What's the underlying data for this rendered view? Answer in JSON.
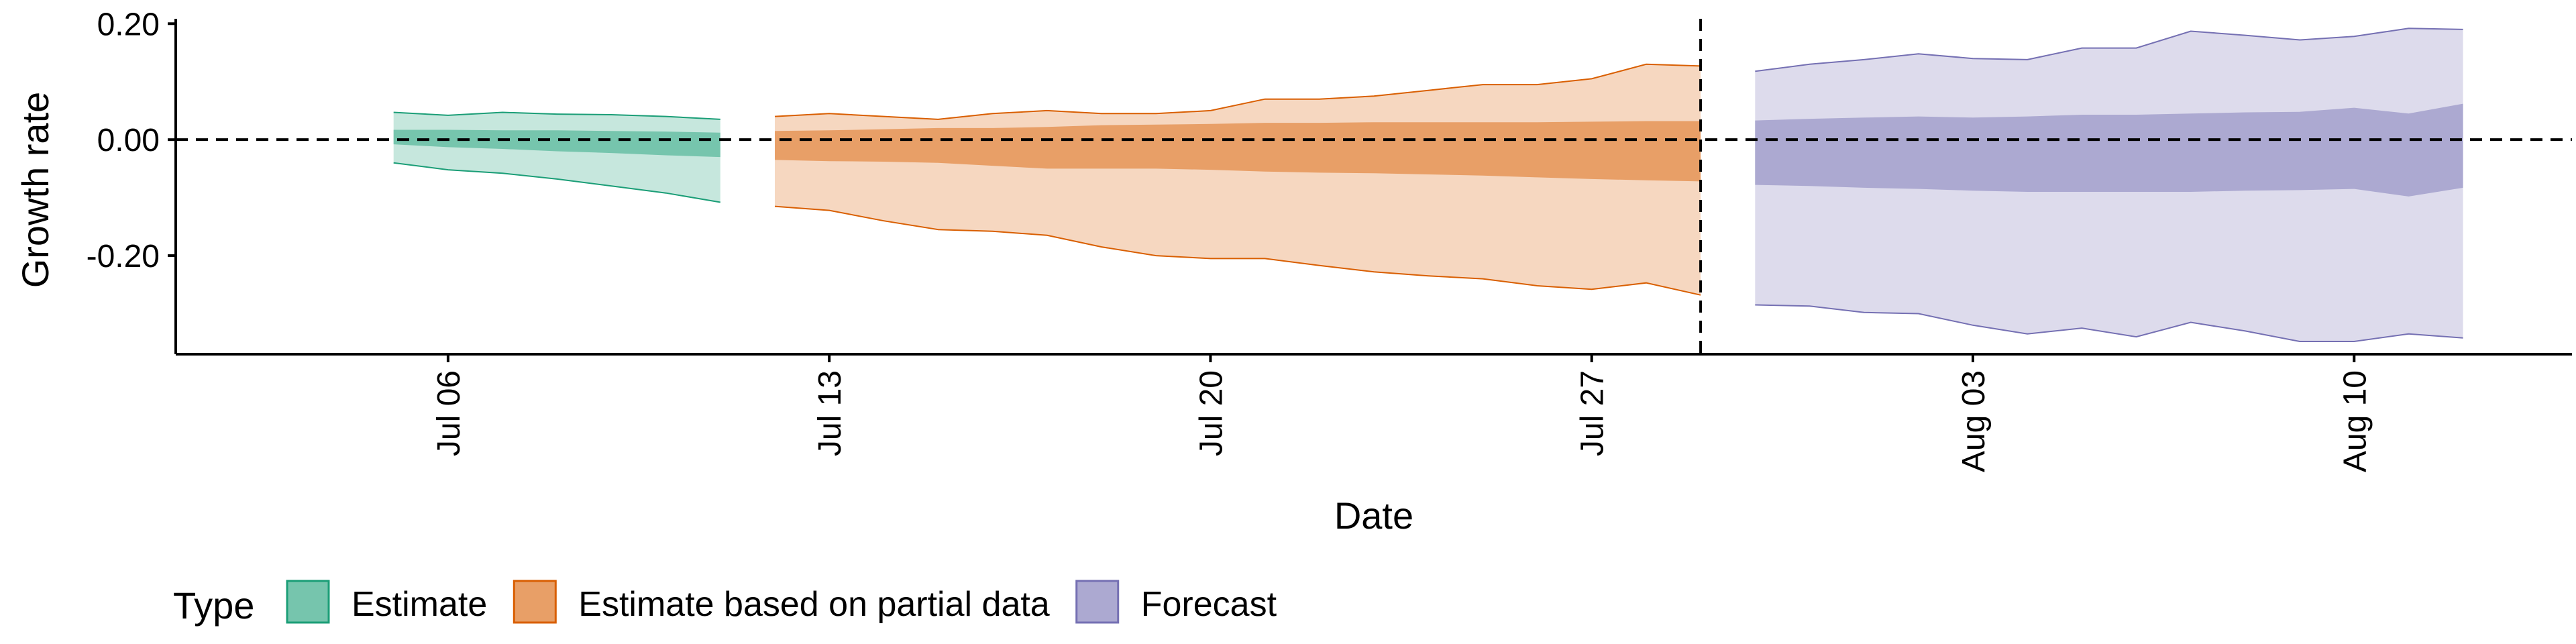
{
  "chart_data": {
    "type": "area",
    "x_type": "date",
    "xlabel": "Date",
    "ylabel": "Growth rate",
    "xlim": [
      "2020-07-01",
      "2020-08-14"
    ],
    "ylim": [
      -0.37,
      0.22
    ],
    "x_ticks": [
      {
        "date": "2020-07-06",
        "label": "Jul 06"
      },
      {
        "date": "2020-07-13",
        "label": "Jul 13"
      },
      {
        "date": "2020-07-20",
        "label": "Jul 20"
      },
      {
        "date": "2020-07-27",
        "label": "Jul 27"
      },
      {
        "date": "2020-08-03",
        "label": "Aug 03"
      },
      {
        "date": "2020-08-10",
        "label": "Aug 10"
      }
    ],
    "y_ticks": [
      {
        "value": 0.2,
        "label": "0.20"
      },
      {
        "value": 0.0,
        "label": "0.00"
      },
      {
        "value": -0.2,
        "label": "-0.20"
      }
    ],
    "reference_lines": [
      {
        "axis": "y",
        "value": 0,
        "style": "dashed"
      },
      {
        "axis": "x",
        "value": "2020-07-29",
        "style": "dashed"
      }
    ],
    "grid": false,
    "legend": {
      "title": "Type",
      "position": "bottom-left"
    },
    "series": [
      {
        "name": "Estimate",
        "color": "#1B9E77",
        "x": [
          "2020-07-05",
          "2020-07-06",
          "2020-07-07",
          "2020-07-08",
          "2020-07-09",
          "2020-07-10",
          "2020-07-11"
        ],
        "upper90": [
          0.047,
          0.042,
          0.047,
          0.044,
          0.043,
          0.04,
          0.035
        ],
        "lower90": [
          -0.04,
          -0.052,
          -0.058,
          -0.068,
          -0.08,
          -0.092,
          -0.108
        ],
        "upper50": [
          0.017,
          0.017,
          0.016,
          0.016,
          0.015,
          0.014,
          0.012
        ],
        "lower50": [
          -0.008,
          -0.013,
          -0.016,
          -0.02,
          -0.023,
          -0.027,
          -0.03
        ]
      },
      {
        "name": "Estimate based on partial data",
        "color": "#D95F02",
        "x": [
          "2020-07-12",
          "2020-07-13",
          "2020-07-14",
          "2020-07-15",
          "2020-07-16",
          "2020-07-17",
          "2020-07-18",
          "2020-07-19",
          "2020-07-20",
          "2020-07-21",
          "2020-07-22",
          "2020-07-23",
          "2020-07-24",
          "2020-07-25",
          "2020-07-26",
          "2020-07-27",
          "2020-07-28",
          "2020-07-29"
        ],
        "upper90": [
          0.04,
          0.045,
          0.04,
          0.035,
          0.045,
          0.05,
          0.045,
          0.045,
          0.05,
          0.07,
          0.07,
          0.075,
          0.085,
          0.095,
          0.095,
          0.105,
          0.13,
          0.127
        ],
        "lower90": [
          -0.115,
          -0.122,
          -0.14,
          -0.155,
          -0.158,
          -0.165,
          -0.185,
          -0.2,
          -0.205,
          -0.205,
          -0.217,
          -0.228,
          -0.235,
          -0.24,
          -0.252,
          -0.258,
          -0.247,
          -0.268
        ],
        "upper50": [
          0.015,
          0.016,
          0.018,
          0.02,
          0.02,
          0.022,
          0.025,
          0.026,
          0.027,
          0.029,
          0.029,
          0.03,
          0.03,
          0.03,
          0.03,
          0.031,
          0.032,
          0.032
        ],
        "lower50": [
          -0.035,
          -0.037,
          -0.038,
          -0.04,
          -0.045,
          -0.05,
          -0.05,
          -0.05,
          -0.052,
          -0.055,
          -0.057,
          -0.058,
          -0.06,
          -0.062,
          -0.065,
          -0.068,
          -0.07,
          -0.072
        ]
      },
      {
        "name": "Forecast",
        "color": "#7570B3",
        "x": [
          "2020-07-30",
          "2020-07-31",
          "2020-08-01",
          "2020-08-02",
          "2020-08-03",
          "2020-08-04",
          "2020-08-05",
          "2020-08-06",
          "2020-08-07",
          "2020-08-08",
          "2020-08-09",
          "2020-08-10",
          "2020-08-11",
          "2020-08-12"
        ],
        "upper90": [
          0.118,
          0.13,
          0.138,
          0.148,
          0.14,
          0.138,
          0.158,
          0.158,
          0.187,
          0.18,
          0.172,
          0.178,
          0.192,
          0.19
        ],
        "lower90": [
          -0.285,
          -0.287,
          -0.298,
          -0.3,
          -0.32,
          -0.335,
          -0.325,
          -0.34,
          -0.315,
          -0.33,
          -0.348,
          -0.348,
          -0.335,
          -0.342
        ],
        "upper50": [
          0.033,
          0.036,
          0.038,
          0.04,
          0.038,
          0.04,
          0.043,
          0.043,
          0.045,
          0.047,
          0.048,
          0.055,
          0.045,
          0.062
        ],
        "lower50": [
          -0.078,
          -0.08,
          -0.083,
          -0.085,
          -0.088,
          -0.09,
          -0.09,
          -0.09,
          -0.09,
          -0.088,
          -0.087,
          -0.085,
          -0.098,
          -0.083
        ]
      }
    ]
  }
}
